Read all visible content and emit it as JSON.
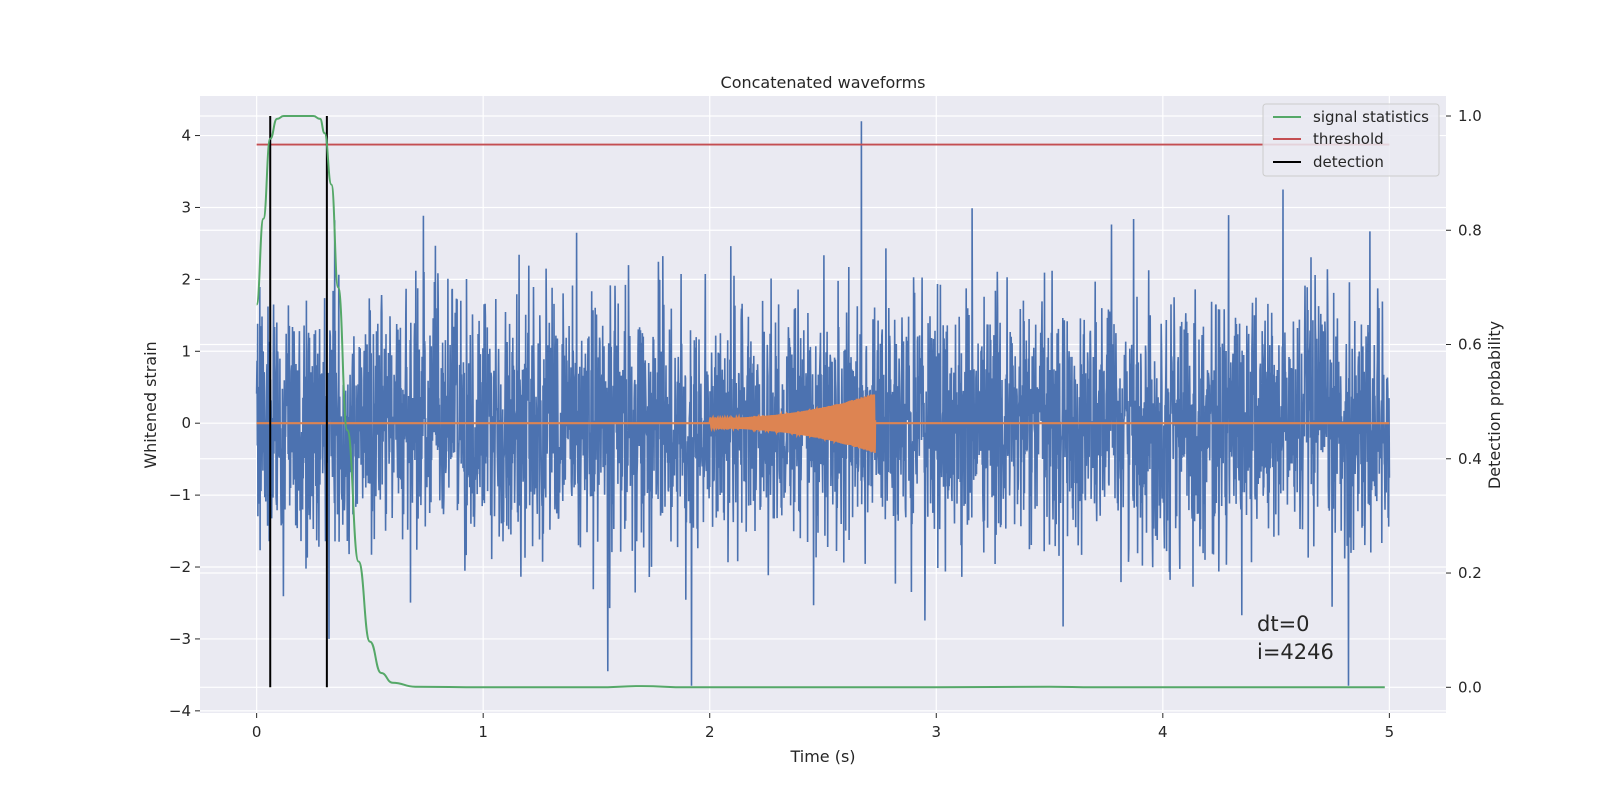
{
  "chart_data": {
    "type": "line",
    "title": "Concatenated waveforms",
    "xlabel": "Time (s)",
    "ylabel": "Whitened strain",
    "y2label": "Detection probability",
    "xlim": [
      -0.25,
      5.25
    ],
    "ylim": [
      -4.03,
      4.55
    ],
    "y2lim": [
      -0.045,
      1.035
    ],
    "xticks": [
      0,
      1,
      2,
      3,
      4,
      5
    ],
    "yticks": [
      -4,
      -3,
      -2,
      -1,
      0,
      1,
      2,
      3,
      4
    ],
    "y2ticks": [
      0.0,
      0.2,
      0.4,
      0.6,
      0.8,
      1.0
    ],
    "y2ticklabels": [
      "0.0",
      "0.2",
      "0.4",
      "0.6",
      "0.8",
      "1.0"
    ],
    "series": [
      {
        "name": "whitened strain",
        "color": "#4c72b0",
        "axis": "left",
        "description": "noise, std about 0.8, range about -3.7 to 4.2, t from 0 to 5 s",
        "x_range": [
          0,
          5
        ],
        "spikes": [
          {
            "x": 2.67,
            "y": 4.2
          },
          {
            "x": 4.53,
            "y": 3.25
          },
          {
            "x": 1.92,
            "y": -3.65
          },
          {
            "x": 4.82,
            "y": -3.65
          },
          {
            "x": 1.55,
            "y": -3.45
          },
          {
            "x": 0.32,
            "y": -3.0
          }
        ]
      },
      {
        "name": "injected waveform",
        "color": "#dd8452",
        "axis": "left",
        "description": "zero except a chirp from 2.0 s to 2.73 s growing to amplitude about 0.4",
        "chirp_start": 2.0,
        "chirp_end": 2.73,
        "peak_amplitude": 0.42
      },
      {
        "name": "signal statistics",
        "color": "#55a868",
        "axis": "right",
        "x": [
          0,
          0.03,
          0.06,
          0.09,
          0.12,
          0.15,
          0.2,
          0.25,
          0.28,
          0.3,
          0.33,
          0.36,
          0.4,
          0.45,
          0.5,
          0.55,
          0.6,
          0.7,
          1.0,
          1.5,
          1.7,
          1.9,
          2.5,
          3.0,
          3.5,
          3.7,
          4.0,
          4.5,
          4.98
        ],
        "values": [
          0.67,
          0.82,
          0.96,
          0.995,
          1.0,
          1.0,
          1.0,
          1.0,
          0.995,
          0.97,
          0.88,
          0.7,
          0.45,
          0.22,
          0.08,
          0.025,
          0.008,
          0.001,
          0.0,
          0.0,
          0.002,
          0.0,
          0.0,
          0.0,
          0.001,
          0.0,
          0.0,
          0.0,
          0.0
        ]
      },
      {
        "name": "threshold",
        "color": "#c44e52",
        "axis": "right",
        "value": 0.95,
        "x_range": [
          0,
          5
        ]
      },
      {
        "name": "detection",
        "color": "#000000",
        "axis": "right",
        "x": [
          0.06,
          0.31
        ],
        "y_range": [
          0.0,
          1.0
        ]
      }
    ],
    "legend": {
      "position": "top-right",
      "entries": [
        {
          "label": "signal statistics",
          "color": "#55a868"
        },
        {
          "label": "threshold",
          "color": "#c44e52"
        },
        {
          "label": "detection",
          "color": "#000000"
        }
      ]
    },
    "annotations": [
      "dt=0",
      "i=4246"
    ],
    "grid": true,
    "background": "#eaeaf2"
  }
}
